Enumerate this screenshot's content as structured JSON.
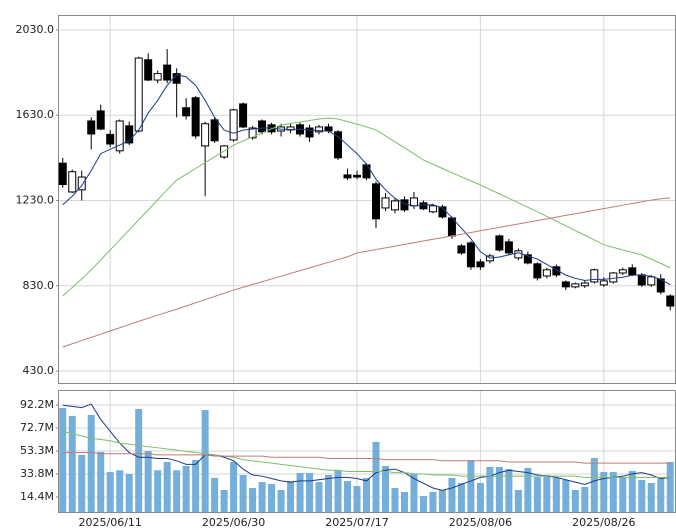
{
  "chart_data": [
    {
      "type": "candlestick",
      "color_up": "#ffffff",
      "color_down": "#000000",
      "ylim": [
        374,
        2100
      ],
      "yticks": [
        {
          "value": 430,
          "label": "430.0"
        },
        {
          "value": 830,
          "label": "830.0"
        },
        {
          "value": 1230,
          "label": "1230.0"
        },
        {
          "value": 1630,
          "label": "1630.0"
        },
        {
          "value": 2030,
          "label": "2030.0"
        }
      ],
      "grid": true,
      "open": [
        1405,
        1270,
        1280,
        1603,
        1650,
        1540,
        1463,
        1580,
        1556,
        1890,
        1795,
        1865,
        1825,
        1665,
        1712,
        1486,
        1608,
        1434,
        1514,
        1683,
        1524,
        1603,
        1585,
        1556,
        1561,
        1585,
        1570,
        1552,
        1575,
        1552,
        1350,
        1348,
        1397,
        1308,
        1195,
        1186,
        1233,
        1205,
        1219,
        1177,
        1200,
        1148,
        1017,
        1031,
        942,
        947,
        1064,
        1036,
        961,
        975,
        933,
        876,
        919,
        848,
        825,
        830,
        848,
        834,
        848,
        890,
        914,
        881,
        834,
        862,
        782
      ],
      "high": [
        1430,
        1375,
        1370,
        1620,
        1680,
        1560,
        1610,
        1600,
        1905,
        1920,
        1840,
        1940,
        1850,
        1710,
        1720,
        1600,
        1620,
        1490,
        1660,
        1690,
        1580,
        1610,
        1595,
        1590,
        1590,
        1595,
        1585,
        1585,
        1590,
        1560,
        1380,
        1370,
        1405,
        1320,
        1265,
        1240,
        1250,
        1270,
        1230,
        1215,
        1210,
        1155,
        1025,
        1040,
        955,
        980,
        1070,
        1050,
        1005,
        990,
        940,
        915,
        930,
        855,
        845,
        855,
        910,
        870,
        895,
        915,
        930,
        890,
        880,
        885,
        790
      ],
      "low": [
        1290,
        1265,
        1230,
        1470,
        1560,
        1480,
        1450,
        1490,
        1550,
        1790,
        1780,
        1780,
        1620,
        1610,
        1520,
        1250,
        1500,
        1425,
        1505,
        1570,
        1515,
        1540,
        1540,
        1530,
        1545,
        1530,
        1505,
        1540,
        1545,
        1420,
        1325,
        1330,
        1325,
        1100,
        1180,
        1170,
        1175,
        1190,
        1185,
        1170,
        1145,
        1050,
        975,
        905,
        905,
        935,
        990,
        975,
        950,
        930,
        855,
        865,
        870,
        810,
        818,
        820,
        840,
        825,
        840,
        880,
        875,
        825,
        825,
        790,
        715
      ],
      "close": [
        1305,
        1365,
        1340,
        1542,
        1565,
        1495,
        1603,
        1500,
        1898,
        1795,
        1825,
        1795,
        1780,
        1627,
        1533,
        1590,
        1510,
        1486,
        1655,
        1575,
        1570,
        1552,
        1552,
        1575,
        1575,
        1542,
        1528,
        1575,
        1556,
        1430,
        1336,
        1340,
        1336,
        1144,
        1242,
        1228,
        1186,
        1242,
        1191,
        1205,
        1153,
        1064,
        984,
        919,
        919,
        970,
        998,
        984,
        994,
        937,
        867,
        905,
        881,
        825,
        839,
        843,
        905,
        853,
        890,
        905,
        881,
        834,
        872,
        801,
        735
      ],
      "series": [
        {
          "color": "#1f3a8a",
          "values": [
            1210,
            1250,
            1300,
            1370,
            1450,
            1470,
            1490,
            1510,
            1560,
            1640,
            1700,
            1770,
            1820,
            1810,
            1770,
            1700,
            1620,
            1560,
            1545,
            1560,
            1565,
            1570,
            1570,
            1565,
            1563,
            1565,
            1560,
            1558,
            1555,
            1530,
            1490,
            1450,
            1400,
            1330,
            1280,
            1240,
            1215,
            1205,
            1210,
            1210,
            1195,
            1150,
            1100,
            1050,
            990,
            960,
            965,
            975,
            985,
            970,
            955,
            930,
            905,
            880,
            865,
            855,
            860,
            860,
            865,
            870,
            880,
            880,
            875,
            860,
            835
          ]
        },
        {
          "color": "#7cbf6a",
          "values": [
            782,
            822,
            862,
            905,
            951,
            998,
            1045,
            1092,
            1139,
            1186,
            1233,
            1280,
            1326,
            1353,
            1380,
            1408,
            1435,
            1462,
            1490,
            1509,
            1528,
            1547,
            1566,
            1584,
            1591,
            1598,
            1605,
            1612,
            1617,
            1612,
            1600,
            1588,
            1575,
            1561,
            1533,
            1505,
            1477,
            1449,
            1420,
            1400,
            1380,
            1360,
            1341,
            1322,
            1303,
            1282,
            1261,
            1240,
            1219,
            1198,
            1177,
            1155,
            1133,
            1111,
            1089,
            1067,
            1045,
            1022,
            1010,
            998,
            987,
            975,
            955,
            935,
            914
          ]
        },
        {
          "color": "#c47a7a",
          "values": [
            543,
            558,
            573,
            588,
            603,
            618,
            633,
            648,
            663,
            678,
            692,
            706,
            720,
            735,
            750,
            765,
            780,
            795,
            810,
            823,
            836,
            849,
            862,
            875,
            888,
            901,
            914,
            927,
            940,
            953,
            966,
            984,
            992,
            1000,
            1008,
            1016,
            1024,
            1032,
            1040,
            1048,
            1056,
            1064,
            1072,
            1080,
            1088,
            1096,
            1104,
            1112,
            1120,
            1128,
            1136,
            1144,
            1152,
            1160,
            1168,
            1176,
            1184,
            1192,
            1200,
            1208,
            1216,
            1224,
            1232,
            1238,
            1242
          ]
        }
      ]
    },
    {
      "type": "bar",
      "color": "#74aedb",
      "ylim": [
        1.7,
        104.9
      ],
      "yticks": [
        {
          "value": 14.4,
          "label": "14.4M"
        },
        {
          "value": 33.8,
          "label": "33.8M"
        },
        {
          "value": 53.3,
          "label": "53.3M"
        },
        {
          "value": 72.7,
          "label": "72.7M"
        },
        {
          "value": 92.2,
          "label": "92.2M"
        }
      ],
      "grid": true,
      "categories": [
        null,
        null,
        null,
        null,
        null,
        "2025/06/11",
        null,
        null,
        null,
        null,
        null,
        null,
        null,
        null,
        null,
        null,
        null,
        null,
        "2025/06/30",
        null,
        null,
        null,
        null,
        null,
        null,
        null,
        null,
        null,
        null,
        null,
        null,
        "2025/07/17",
        null,
        null,
        null,
        null,
        null,
        null,
        null,
        null,
        null,
        null,
        null,
        null,
        "2025/08/06",
        null,
        null,
        null,
        null,
        null,
        null,
        null,
        null,
        null,
        null,
        null,
        null,
        "2025/08/26",
        null,
        null,
        null,
        null,
        null,
        null,
        null
      ],
      "values": [
        89.7,
        83,
        50,
        83.8,
        52.5,
        35.5,
        37,
        33.8,
        88.8,
        53.3,
        37,
        44,
        37,
        40.6,
        45.7,
        88,
        30.5,
        20.3,
        44,
        33,
        22,
        27,
        25.4,
        20.3,
        27.9,
        34.7,
        34.7,
        27,
        33,
        37,
        27.9,
        23.7,
        30.5,
        61,
        40.6,
        22,
        18.6,
        33.8,
        15.2,
        18.6,
        20.3,
        30.5,
        26.2,
        45.7,
        26.2,
        39.8,
        39.8,
        38,
        20.3,
        39,
        31.3,
        33,
        30.5,
        28.8,
        20.3,
        22.9,
        47.4,
        35.5,
        35.5,
        31.3,
        36.4,
        28.8,
        26.2,
        30.5,
        44
      ],
      "series": [
        {
          "color": "#1f3a8a",
          "values": [
            92,
            91,
            90,
            93,
            80,
            70,
            60,
            52,
            48,
            48,
            47,
            47,
            45,
            42,
            42,
            50,
            50,
            48,
            45,
            38,
            33,
            32,
            30,
            28,
            27,
            28,
            28,
            29,
            30,
            31,
            31,
            30,
            28,
            35,
            37,
            38,
            35,
            30,
            26,
            22,
            20,
            22,
            25,
            28,
            31,
            32,
            35,
            37,
            36,
            35,
            33,
            32,
            31,
            29,
            27,
            25,
            28,
            30,
            31,
            32,
            34,
            35,
            33,
            30,
            31
          ]
        },
        {
          "color": "#7cbf6a",
          "values": [
            70,
            68,
            66,
            64,
            63,
            62,
            60,
            59,
            58,
            57,
            56,
            55,
            54,
            53,
            52,
            51,
            50,
            49,
            48,
            46,
            45,
            44,
            43,
            42,
            41,
            40,
            39,
            38,
            37,
            37,
            36,
            36,
            36,
            36,
            36,
            35,
            35,
            34,
            34,
            33,
            33,
            33,
            32,
            32,
            32,
            32,
            32,
            32,
            32,
            32,
            32,
            32,
            32,
            32,
            32,
            31,
            31,
            31,
            31,
            31,
            31,
            31,
            31,
            31,
            31
          ]
        },
        {
          "color": "#c47a7a",
          "values": [
            52,
            52,
            52,
            52,
            51,
            51,
            51,
            51,
            51,
            51,
            50,
            50,
            50,
            50,
            50,
            50,
            49,
            49,
            49,
            49,
            49,
            49,
            48,
            48,
            48,
            48,
            48,
            48,
            47,
            47,
            47,
            47,
            47,
            47,
            46,
            46,
            46,
            46,
            46,
            46,
            45,
            45,
            45,
            45,
            45,
            45,
            45,
            44,
            44,
            44,
            44,
            44,
            44,
            44,
            44,
            43,
            43,
            43,
            43,
            43,
            43,
            43,
            43,
            43,
            43
          ]
        }
      ]
    }
  ]
}
